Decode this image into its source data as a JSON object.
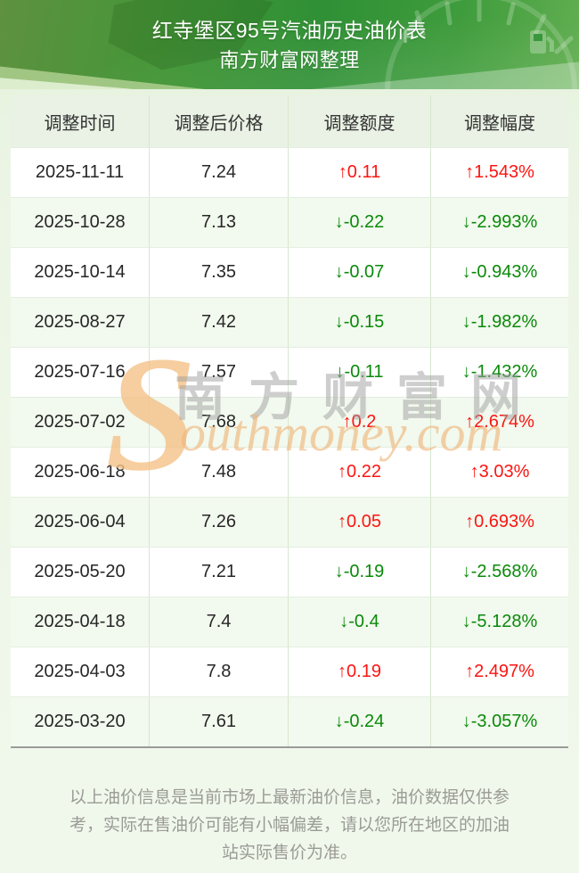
{
  "header": {
    "title": "红寺堡区95号汽油历史油价表",
    "subtitle": "南方财富网整理"
  },
  "table": {
    "columns": [
      "调整时间",
      "调整后价格",
      "调整额度",
      "调整幅度"
    ],
    "rows": [
      {
        "date": "2025-11-11",
        "price": "7.24",
        "change": "0.11",
        "pct": "1.543%",
        "dir": "up"
      },
      {
        "date": "2025-10-28",
        "price": "7.13",
        "change": "-0.22",
        "pct": "-2.993%",
        "dir": "down"
      },
      {
        "date": "2025-10-14",
        "price": "7.35",
        "change": "-0.07",
        "pct": "-0.943%",
        "dir": "down"
      },
      {
        "date": "2025-08-27",
        "price": "7.42",
        "change": "-0.15",
        "pct": "-1.982%",
        "dir": "down"
      },
      {
        "date": "2025-07-16",
        "price": "7.57",
        "change": "-0.11",
        "pct": "-1.432%",
        "dir": "down"
      },
      {
        "date": "2025-07-02",
        "price": "7.68",
        "change": "0.2",
        "pct": "2.674%",
        "dir": "up"
      },
      {
        "date": "2025-06-18",
        "price": "7.48",
        "change": "0.22",
        "pct": "3.03%",
        "dir": "up"
      },
      {
        "date": "2025-06-04",
        "price": "7.26",
        "change": "0.05",
        "pct": "0.693%",
        "dir": "up"
      },
      {
        "date": "2025-05-20",
        "price": "7.21",
        "change": "-0.19",
        "pct": "-2.568%",
        "dir": "down"
      },
      {
        "date": "2025-04-18",
        "price": "7.4",
        "change": "-0.4",
        "pct": "-5.128%",
        "dir": "down"
      },
      {
        "date": "2025-04-03",
        "price": "7.8",
        "change": "0.19",
        "pct": "2.497%",
        "dir": "up"
      },
      {
        "date": "2025-03-20",
        "price": "7.61",
        "change": "-0.24",
        "pct": "-3.057%",
        "dir": "down"
      }
    ]
  },
  "icons": {
    "up_arrow": "↑",
    "down_arrow": "↓",
    "gauge_full_label": "F"
  },
  "colors": {
    "up": "#fb1511",
    "down": "#0a8a0a",
    "banner_green": "#2f9035",
    "watermark_orange": "#f0b87e"
  },
  "watermark": {
    "s_glyph": "S",
    "cn_text": "南方财富网",
    "en_text": "outhmoney.com"
  },
  "footer": {
    "text": "以上油价信息是当前市场上最新油价信息，油价数据仅供参考，实际在售油价可能有小幅偏差，请以您所在地区的加油站实际售价为准。"
  }
}
